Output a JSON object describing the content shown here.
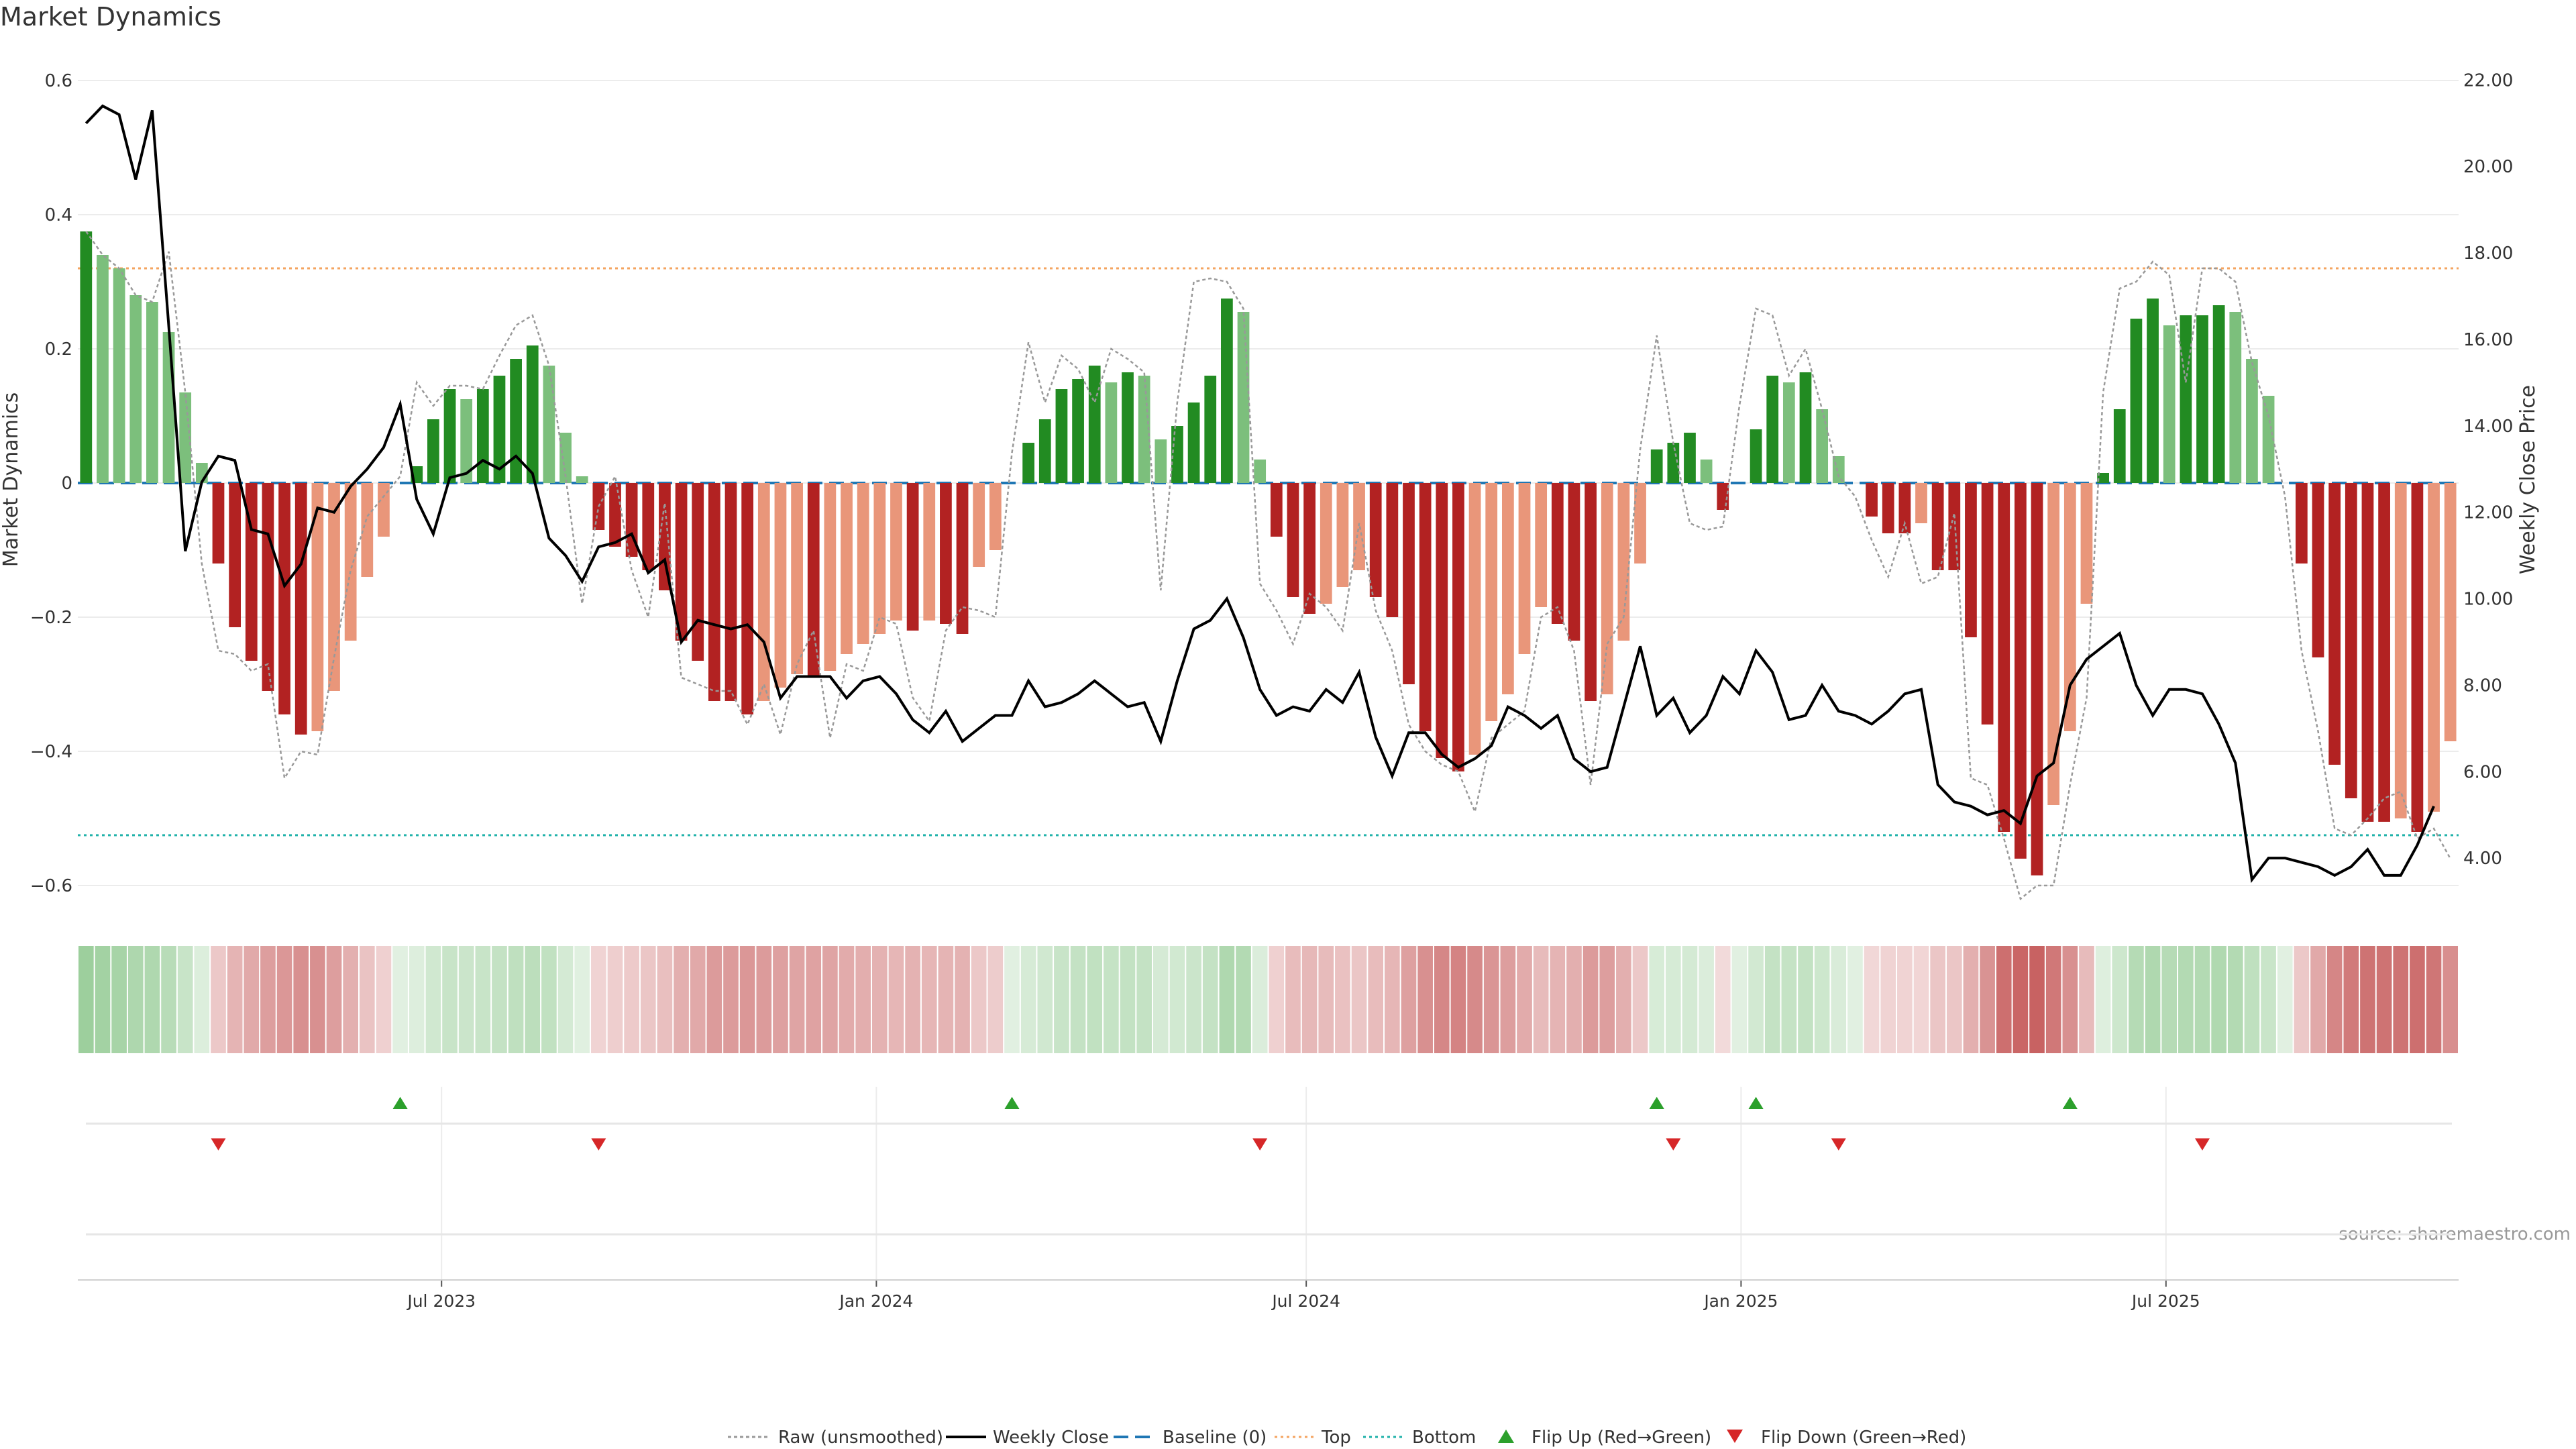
{
  "chart_data": {
    "type": "bar",
    "title": "Market Dynamics",
    "ylabel_left": "Market Dynamics",
    "ylabel_right": "Weekly Close Price",
    "source": "source: sharemaestro.com",
    "ylim_left": [
      -0.63,
      0.62
    ],
    "ylim_right": [
      2.9,
      22.3
    ],
    "left_ticks": [
      {
        "v": 0.6,
        "label": "0.6"
      },
      {
        "v": 0.4,
        "label": "0.4"
      },
      {
        "v": 0.2,
        "label": "0.2"
      },
      {
        "v": 0,
        "label": "0"
      },
      {
        "v": -0.2,
        "label": "−0.2"
      },
      {
        "v": -0.4,
        "label": "−0.4"
      },
      {
        "v": -0.6,
        "label": "−0.6"
      }
    ],
    "right_ticks": [
      {
        "v": 22,
        "label": "22.00"
      },
      {
        "v": 20,
        "label": "20.00"
      },
      {
        "v": 18,
        "label": "18.00"
      },
      {
        "v": 16,
        "label": "16.00"
      },
      {
        "v": 14,
        "label": "14.00"
      },
      {
        "v": 12,
        "label": "12.00"
      },
      {
        "v": 10,
        "label": "10.00"
      },
      {
        "v": 8,
        "label": "8.00"
      },
      {
        "v": 6,
        "label": "6.00"
      },
      {
        "v": 4,
        "label": "4.00"
      }
    ],
    "x_ticks": [
      {
        "i": 22,
        "label": "Jul 2023"
      },
      {
        "i": 48.3,
        "label": "Jan 2024"
      },
      {
        "i": 74.3,
        "label": "Jul 2024"
      },
      {
        "i": 100.6,
        "label": "Jan 2025"
      },
      {
        "i": 126.3,
        "label": "Jul 2025"
      }
    ],
    "top_threshold": 0.32,
    "bottom_threshold": -0.525,
    "baseline": 0,
    "values": [
      0.375,
      0.34,
      0.32,
      0.28,
      0.27,
      0.225,
      0.135,
      0.03,
      -0.12,
      -0.215,
      -0.265,
      -0.31,
      -0.345,
      -0.375,
      -0.37,
      -0.31,
      -0.235,
      -0.14,
      -0.08,
      0,
      0.025,
      0.095,
      0.14,
      0.125,
      0.14,
      0.16,
      0.185,
      0.205,
      0.175,
      0.075,
      0.01,
      -0.07,
      -0.095,
      -0.11,
      -0.13,
      -0.16,
      -0.235,
      -0.265,
      -0.325,
      -0.325,
      -0.345,
      -0.325,
      -0.305,
      -0.285,
      -0.29,
      -0.28,
      -0.255,
      -0.24,
      -0.225,
      -0.205,
      -0.22,
      -0.205,
      -0.21,
      -0.225,
      -0.125,
      -0.1,
      0,
      0.06,
      0.095,
      0.14,
      0.155,
      0.175,
      0.15,
      0.165,
      0.16,
      0.065,
      0.085,
      0.12,
      0.16,
      0.275,
      0.255,
      0.035,
      -0.08,
      -0.17,
      -0.195,
      -0.18,
      -0.155,
      -0.13,
      -0.17,
      -0.2,
      -0.3,
      -0.37,
      -0.41,
      -0.43,
      -0.405,
      -0.355,
      -0.315,
      -0.255,
      -0.185,
      -0.21,
      -0.235,
      -0.325,
      -0.315,
      -0.235,
      -0.12,
      0.05,
      0.06,
      0.075,
      0.035,
      -0.04,
      0,
      0.08,
      0.16,
      0.15,
      0.165,
      0.11,
      0.04,
      0,
      -0.05,
      -0.075,
      -0.075,
      -0.06,
      -0.13,
      -0.13,
      -0.23,
      -0.36,
      -0.52,
      -0.56,
      -0.585,
      -0.48,
      -0.37,
      -0.18,
      0.015,
      0.11,
      0.245,
      0.275,
      0.235,
      0.25,
      0.25,
      0.265,
      0.255,
      0.185,
      0.13,
      0,
      -0.12,
      -0.26,
      -0.42,
      -0.47,
      -0.505,
      -0.505,
      -0.5,
      -0.52,
      -0.49,
      -0.385
    ],
    "raw": [
      0.375,
      0.34,
      0.32,
      0.28,
      0.27,
      0.345,
      0.135,
      -0.12,
      -0.25,
      -0.255,
      -0.28,
      -0.27,
      -0.44,
      -0.4,
      -0.405,
      -0.26,
      -0.13,
      -0.05,
      -0.02,
      0.01,
      0.15,
      0.115,
      0.145,
      0.145,
      0.14,
      0.19,
      0.235,
      0.25,
      0.175,
      0.01,
      -0.18,
      -0.035,
      0.01,
      -0.13,
      -0.2,
      -0.03,
      -0.29,
      -0.3,
      -0.31,
      -0.31,
      -0.36,
      -0.3,
      -0.375,
      -0.27,
      -0.22,
      -0.38,
      -0.27,
      -0.28,
      -0.2,
      -0.21,
      -0.32,
      -0.355,
      -0.22,
      -0.185,
      -0.19,
      -0.2,
      0.045,
      0.21,
      0.12,
      0.19,
      0.17,
      0.12,
      0.2,
      0.185,
      0.165,
      -0.16,
      0.12,
      0.3,
      0.305,
      0.3,
      0.26,
      -0.15,
      -0.19,
      -0.24,
      -0.165,
      -0.185,
      -0.22,
      -0.06,
      -0.19,
      -0.25,
      -0.36,
      -0.4,
      -0.42,
      -0.43,
      -0.49,
      -0.38,
      -0.36,
      -0.34,
      -0.2,
      -0.185,
      -0.25,
      -0.45,
      -0.24,
      -0.2,
      0.05,
      0.22,
      0.06,
      -0.06,
      -0.07,
      -0.065,
      0.115,
      0.26,
      0.25,
      0.16,
      0.2,
      0.11,
      0.01,
      -0.02,
      -0.085,
      -0.14,
      -0.06,
      -0.15,
      -0.14,
      -0.045,
      -0.44,
      -0.45,
      -0.53,
      -0.62,
      -0.6,
      -0.6,
      -0.45,
      -0.32,
      0.135,
      0.29,
      0.3,
      0.33,
      0.31,
      0.15,
      0.32,
      0.32,
      0.3,
      0.18,
      0.1,
      -0.02,
      -0.25,
      -0.37,
      -0.515,
      -0.525,
      -0.5,
      -0.47,
      -0.46,
      -0.53,
      -0.515,
      -0.56
    ],
    "price": [
      21.0,
      21.4,
      21.2,
      19.7,
      21.3,
      16.3,
      11.1,
      12.7,
      13.3,
      13.2,
      11.6,
      11.5,
      10.3,
      10.8,
      12.1,
      12.0,
      12.6,
      13.0,
      13.5,
      14.5,
      12.3,
      11.5,
      12.8,
      12.9,
      13.2,
      13.0,
      13.3,
      12.9,
      11.4,
      11.0,
      10.4,
      11.2,
      11.3,
      11.5,
      10.6,
      10.9,
      9.0,
      9.5,
      9.4,
      9.3,
      9.4,
      9.0,
      7.7,
      8.2,
      8.2,
      8.2,
      7.7,
      8.1,
      8.2,
      7.8,
      7.2,
      6.9,
      7.4,
      6.7,
      7.0,
      7.3,
      7.3,
      8.1,
      7.5,
      7.6,
      7.8,
      8.1,
      7.8,
      7.5,
      7.6,
      6.7,
      8.1,
      9.3,
      9.5,
      10.0,
      9.1,
      7.9,
      7.3,
      7.5,
      7.4,
      7.9,
      7.6,
      8.3,
      6.8,
      5.9,
      6.9,
      6.9,
      6.4,
      6.1,
      6.3,
      6.6,
      7.5,
      7.3,
      7.0,
      7.3,
      6.3,
      6.0,
      6.1,
      7.5,
      8.9,
      7.3,
      7.7,
      6.9,
      7.3,
      8.2,
      7.8,
      8.8,
      8.3,
      7.2,
      7.3,
      8.0,
      7.4,
      7.3,
      7.1,
      7.4,
      7.8,
      7.9,
      5.7,
      5.3,
      5.2,
      5.0,
      5.1,
      4.8,
      5.9,
      6.2,
      8.0,
      8.6,
      8.9,
      9.2,
      8.0,
      7.3,
      7.9,
      7.9,
      7.8,
      7.1,
      6.2,
      3.5,
      4.0,
      4.0,
      3.9,
      3.8,
      3.6,
      3.8,
      4.2,
      3.6,
      3.6,
      4.3,
      5.2
    ],
    "flip_up": [
      19,
      56,
      95,
      101,
      120
    ],
    "flip_down": [
      8,
      31,
      71,
      96,
      106,
      128
    ],
    "legend": [
      {
        "key": "raw",
        "label": "Raw (unsmoothed)"
      },
      {
        "key": "close",
        "label": "Weekly Close"
      },
      {
        "key": "baseline",
        "label": "Baseline (0)"
      },
      {
        "key": "top",
        "label": "Top"
      },
      {
        "key": "bottom",
        "label": "Bottom"
      },
      {
        "key": "up",
        "label": "Flip Up (Red→Green)"
      },
      {
        "key": "down",
        "label": "Flip Down (Green→Red)"
      }
    ],
    "legend_placement": "bottom-center",
    "colors": {
      "green_strong": "#228b22",
      "green_light": "#7cbf7c",
      "red_strong": "#b22222",
      "red_light": "#e9967a",
      "price_line": "#000000",
      "raw_line": "#999999",
      "baseline": "#1f77b4",
      "top": "#f4a460",
      "bottom": "#20b2aa",
      "flip_up": "#2ca02c",
      "flip_down": "#d62728"
    }
  }
}
